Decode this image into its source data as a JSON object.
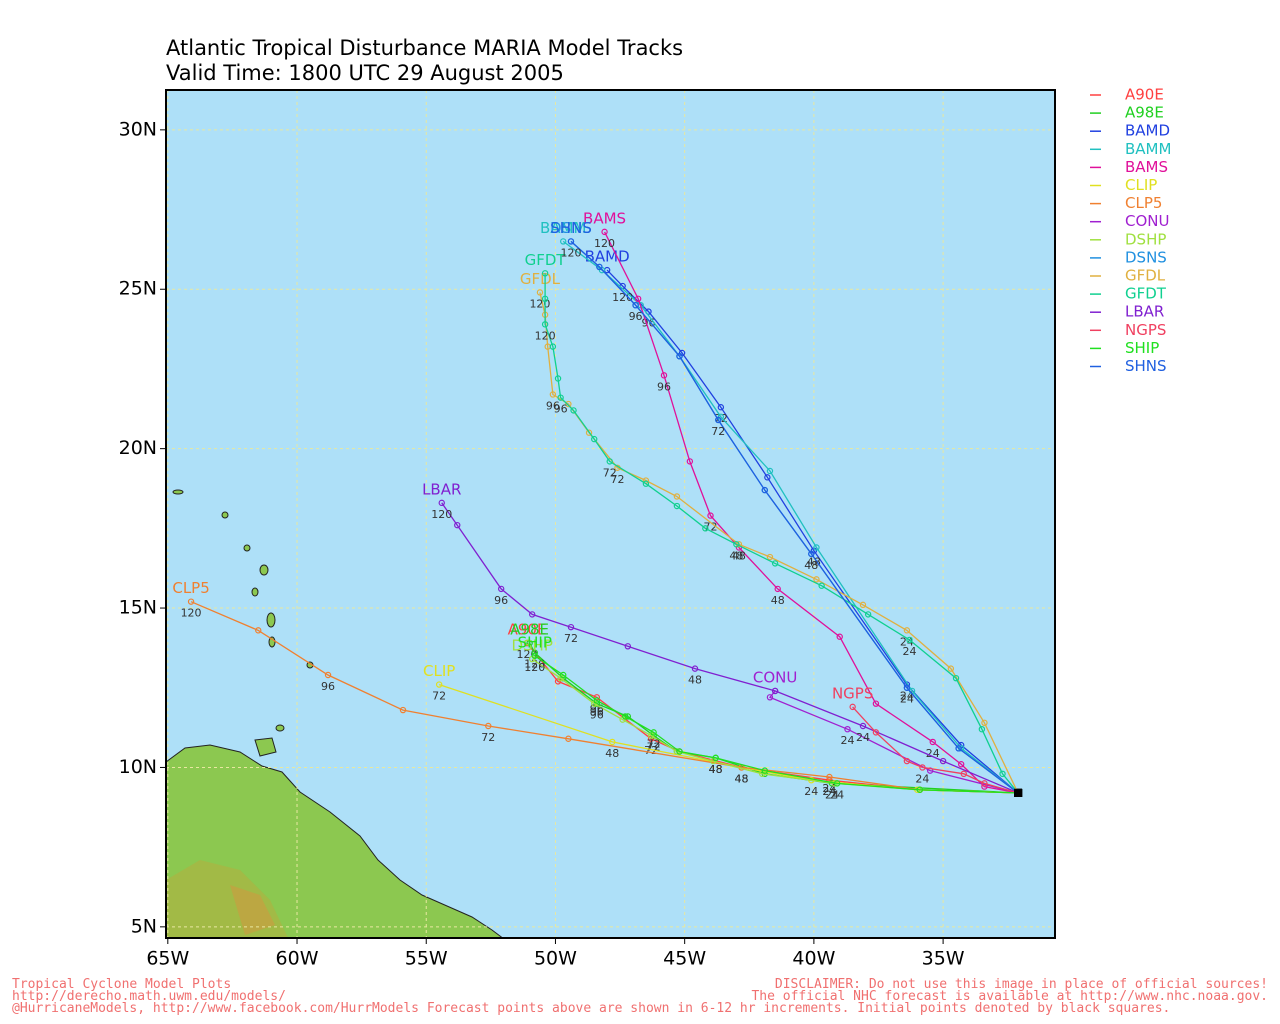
{
  "chart_data": {
    "type": "line",
    "title": "Atlantic Tropical Disturbance MARIA Model Tracks",
    "subtitle": "Valid Time: 1800 UTC 29 August 2005",
    "xlim": [
      -65.07,
      -30.67
    ],
    "ylim": [
      4.65,
      31.25
    ],
    "xticks": [
      {
        "value": -65,
        "label": "65W"
      },
      {
        "value": -60,
        "label": "60W"
      },
      {
        "value": -55,
        "label": "55W"
      },
      {
        "value": -50,
        "label": "50W"
      },
      {
        "value": -45,
        "label": "45W"
      },
      {
        "value": -40,
        "label": "40W"
      },
      {
        "value": -35,
        "label": "35W"
      }
    ],
    "yticks": [
      {
        "value": 5,
        "label": "5N"
      },
      {
        "value": 10,
        "label": "10N"
      },
      {
        "value": 15,
        "label": "15N"
      },
      {
        "value": 20,
        "label": "20N"
      },
      {
        "value": 25,
        "label": "25N"
      },
      {
        "value": 30,
        "label": "30N"
      }
    ],
    "grid": true,
    "series": [
      {
        "name": "A90E",
        "color": "#ff4040",
        "x": [
          -32.1,
          -35.9,
          -39.4,
          -42.8,
          -45.2,
          -46.3,
          -48.4,
          -49.9,
          -51.1
        ],
        "values": [
          9.2,
          9.3,
          9.6,
          10.0,
          10.5,
          10.9,
          12.2,
          12.7,
          13.9
        ],
        "point_labels": [
          null,
          null,
          "24",
          "48",
          null,
          "72",
          "96",
          null,
          "120"
        ]
      },
      {
        "name": "A98E",
        "color": "#20d020",
        "x": [
          -32.1,
          -39.3,
          -41.9,
          -43.8,
          -45.3,
          -46.2,
          -47.2,
          -48.4,
          -49.7,
          -50.8,
          -51.0
        ],
        "values": [
          9.2,
          9.5,
          9.8,
          10.3,
          10.5,
          11.0,
          11.6,
          12.0,
          12.8,
          13.6,
          13.9
        ],
        "point_labels": [
          null,
          "24",
          null,
          "48",
          null,
          "72",
          null,
          "96",
          null,
          "120",
          null
        ]
      },
      {
        "name": "BAMD",
        "color": "#2040e0",
        "x": [
          -32.1,
          -34.3,
          -36.4,
          -40.0,
          -41.8,
          -43.6,
          -45.1,
          -46.4,
          -47.4,
          -48.0
        ],
        "values": [
          9.2,
          10.7,
          12.6,
          16.8,
          19.1,
          21.3,
          23.0,
          24.3,
          25.1,
          25.6
        ],
        "point_labels": [
          null,
          null,
          "24",
          "48",
          null,
          "72",
          null,
          "96",
          "120",
          null
        ]
      },
      {
        "name": "BAMM",
        "color": "#20c0c0",
        "x": [
          -32.1,
          -34.3,
          -36.2,
          -39.9,
          -41.7,
          -43.6,
          -45.2,
          -46.7,
          -48.2,
          -49.7
        ],
        "values": [
          9.2,
          10.6,
          12.4,
          16.9,
          19.3,
          21.0,
          22.9,
          24.5,
          25.6,
          26.5
        ]
      },
      {
        "name": "BAMS",
        "color": "#e0109a",
        "x": [
          -32.1,
          -33.4,
          -34.3,
          -35.4,
          -37.6,
          -39.0,
          -41.4,
          -42.9,
          -44.0,
          -44.8,
          -45.8,
          -46.8,
          -48.1
        ],
        "values": [
          9.2,
          9.4,
          10.1,
          10.8,
          12.0,
          14.1,
          15.6,
          16.9,
          17.9,
          19.6,
          22.3,
          24.7,
          26.8
        ],
        "point_labels": [
          null,
          null,
          null,
          "24",
          null,
          null,
          "48",
          null,
          "72",
          null,
          "96",
          null,
          "120"
        ]
      },
      {
        "name": "CLIP",
        "color": "#e0e020",
        "x": [
          -32.1,
          -36.0,
          -40.1,
          -42.8,
          -47.8,
          -54.5
        ],
        "values": [
          9.2,
          9.3,
          9.6,
          10.0,
          10.8,
          12.6
        ],
        "point_labels": [
          null,
          null,
          "24",
          null,
          "48",
          "72"
        ]
      },
      {
        "name": "CLP5",
        "color": "#f08030",
        "x": [
          -32.1,
          -35.9,
          -39.4,
          -42.8,
          -49.5,
          -52.6,
          -55.9,
          -58.8,
          -61.5,
          -64.1
        ],
        "values": [
          9.2,
          9.3,
          9.7,
          10.0,
          10.9,
          11.3,
          11.8,
          12.9,
          14.3,
          15.2
        ],
        "point_labels": [
          null,
          null,
          "24",
          "48",
          null,
          "72",
          null,
          "96",
          null,
          "120"
        ]
      },
      {
        "name": "CONU",
        "color": "#a020d0",
        "x": [
          -32.1,
          -35.5,
          -38.7,
          -41.7,
          -41.5
        ],
        "values": [
          9.2,
          9.9,
          11.2,
          12.2,
          12.4
        ],
        "point_labels": [
          null,
          null,
          "24",
          null,
          null
        ]
      },
      {
        "name": "DSHP",
        "color": "#a0e040",
        "x": [
          -32.1,
          -35.9,
          -39.2,
          -42.0,
          -43.9,
          -45.3,
          -46.3,
          -47.4,
          -48.5,
          -49.8,
          -50.9
        ],
        "values": [
          9.2,
          9.3,
          9.5,
          9.8,
          10.2,
          10.5,
          11.0,
          11.5,
          12.0,
          12.8,
          13.4
        ]
      },
      {
        "name": "DSNS",
        "color": "#2090e0",
        "x": [
          -32.1,
          -34.4,
          -36.4,
          -40.1,
          -41.9,
          -43.7,
          -45.2,
          -46.9,
          -48.3,
          -49.4
        ],
        "values": [
          9.2,
          10.6,
          12.5,
          16.7,
          18.7,
          20.9,
          22.9,
          24.5,
          25.7,
          26.5
        ]
      },
      {
        "name": "GFDL",
        "color": "#e0b040",
        "x": [
          -32.1,
          -33.4,
          -34.7,
          -36.4,
          -38.1,
          -39.9,
          -41.7,
          -42.9,
          -45.3,
          -46.5,
          -47.6,
          -48.7,
          -49.5,
          -50.1,
          -50.3,
          -50.4,
          -50.6
        ],
        "values": [
          9.2,
          11.4,
          13.1,
          14.3,
          15.1,
          15.9,
          16.6,
          17.0,
          18.5,
          19.0,
          19.4,
          20.5,
          21.4,
          21.7,
          23.2,
          24.2,
          24.9
        ],
        "point_labels": [
          null,
          null,
          null,
          "24",
          null,
          null,
          null,
          "48",
          null,
          null,
          "72",
          null,
          null,
          "96",
          null,
          null,
          "120"
        ]
      },
      {
        "name": "GFDT",
        "color": "#10d090",
        "x": [
          -32.1,
          -32.7,
          -33.5,
          -34.5,
          -36.3,
          -37.9,
          -39.7,
          -41.5,
          -43.0,
          -44.2,
          -45.3,
          -46.5,
          -47.9,
          -48.5,
          -49.3,
          -49.8,
          -49.9,
          -50.1,
          -50.4,
          -50.4,
          -50.4
        ],
        "values": [
          9.2,
          9.8,
          11.2,
          12.8,
          14.0,
          14.8,
          15.7,
          16.4,
          17.0,
          17.5,
          18.2,
          18.9,
          19.6,
          20.3,
          21.2,
          21.6,
          22.2,
          23.2,
          23.9,
          24.7,
          25.5
        ],
        "point_labels": [
          null,
          null,
          null,
          null,
          "24",
          null,
          null,
          null,
          "48",
          null,
          null,
          null,
          "72",
          null,
          null,
          "96",
          null,
          null,
          "120",
          null,
          null
        ]
      },
      {
        "name": "LBAR",
        "color": "#8020d0",
        "x": [
          -32.1,
          -35.0,
          -38.1,
          -41.5,
          -44.6,
          -47.2,
          -49.4,
          -50.9,
          -52.1,
          -53.8,
          -54.4
        ],
        "values": [
          9.2,
          10.2,
          11.3,
          12.4,
          13.1,
          13.8,
          14.4,
          14.8,
          15.6,
          17.6,
          18.3
        ],
        "point_labels": [
          null,
          null,
          "24",
          null,
          "48",
          null,
          "72",
          null,
          "96",
          null,
          "120"
        ]
      },
      {
        "name": "NGPS",
        "color": "#f04060",
        "x": [
          -32.1,
          -33.4,
          -34.2,
          -35.8,
          -36.4,
          -37.6,
          -38.5
        ],
        "values": [
          9.2,
          9.5,
          9.8,
          10.0,
          10.2,
          11.1,
          11.9
        ],
        "point_labels": [
          null,
          null,
          null,
          "24",
          null,
          null,
          null
        ]
      },
      {
        "name": "SHIP",
        "color": "#20e020",
        "x": [
          -32.1,
          -35.9,
          -39.1,
          -41.9,
          -43.8,
          -45.2,
          -46.2,
          -47.3,
          -48.4,
          -49.7,
          -50.8
        ],
        "values": [
          9.2,
          9.3,
          9.5,
          9.9,
          10.3,
          10.5,
          11.1,
          11.6,
          12.1,
          12.9,
          13.5
        ],
        "point_labels": [
          null,
          null,
          "24",
          null,
          "48",
          null,
          "72",
          null,
          "96",
          null,
          "120"
        ]
      },
      {
        "name": "SHNS",
        "color": "#2060e0",
        "x": [
          -32.1,
          -34.4,
          -36.4,
          -40.1,
          -41.9,
          -43.7,
          -45.2,
          -46.9,
          -48.3,
          -49.4
        ],
        "values": [
          9.2,
          10.6,
          12.5,
          16.7,
          18.7,
          20.9,
          22.9,
          24.5,
          25.7,
          26.5
        ],
        "point_labels": [
          null,
          null,
          "24",
          "48",
          null,
          "72",
          null,
          "96",
          null,
          "120"
        ]
      }
    ]
  },
  "footer": {
    "left": [
      "Tropical Cyclone Model Plots",
      "http://derecho.math.uwm.edu/models/",
      "@HurricaneModels, http://www.facebook.com/HurrModels  Forecast points above are shown in 6-12 hr increments. Initial points denoted by black squares."
    ],
    "right": [
      "DISCLAIMER: Do not use this image in place of official sources!",
      "The official NHC forecast is available at http://www.nhc.noaa.gov."
    ]
  }
}
